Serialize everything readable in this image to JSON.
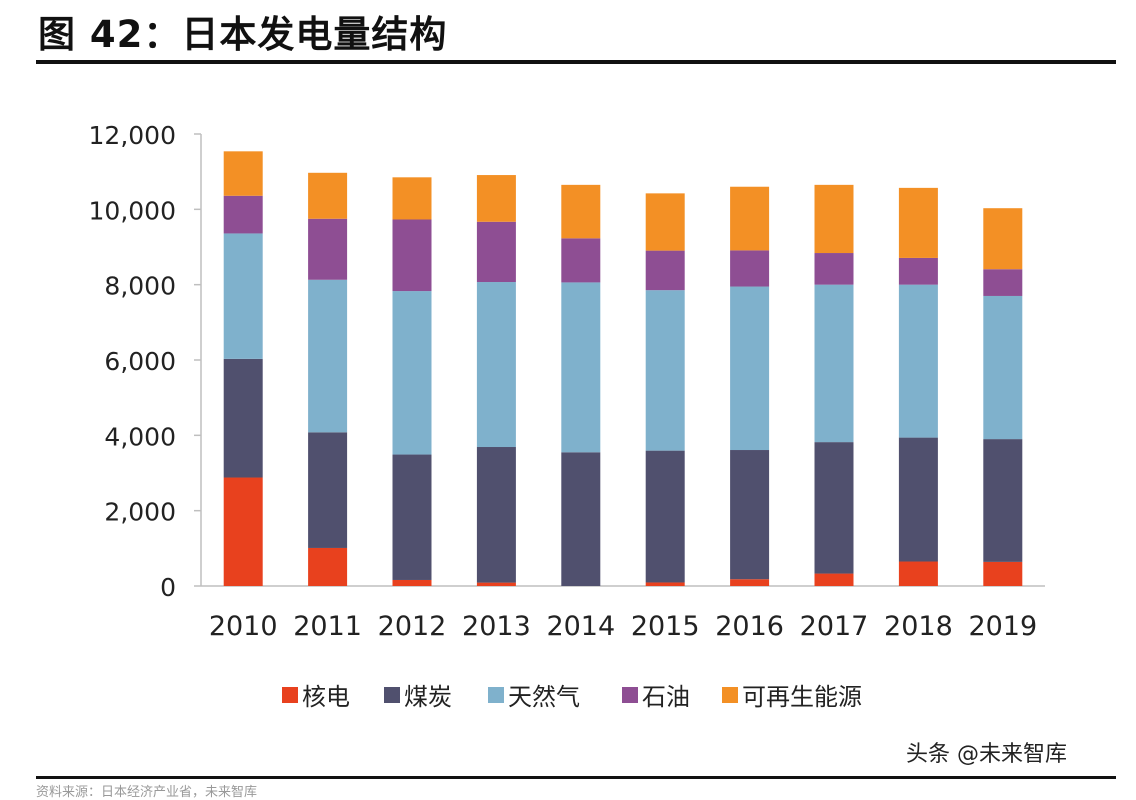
{
  "header": {
    "title": "图 42：日本发电量结构"
  },
  "chart_data": {
    "type": "bar",
    "stacked": true,
    "title": "",
    "xlabel": "",
    "ylabel": "",
    "ylim": [
      0,
      12000
    ],
    "yticks": [
      0,
      2000,
      4000,
      6000,
      8000,
      10000,
      12000
    ],
    "ytick_labels": [
      "0",
      "2,000",
      "4,000",
      "6,000",
      "8,000",
      "10,000",
      "12,000"
    ],
    "categories": [
      "2010",
      "2011",
      "2012",
      "2013",
      "2014",
      "2015",
      "2016",
      "2017",
      "2018",
      "2019"
    ],
    "grid": false,
    "legend_position": "bottom",
    "series": [
      {
        "name": "核电",
        "color": "#e8411e",
        "values": [
          2880,
          1010,
          160,
          90,
          0,
          94,
          180,
          330,
          650,
          640
        ]
      },
      {
        "name": "煤炭",
        "color": "#50506e",
        "values": [
          3150,
          3070,
          3330,
          3600,
          3550,
          3500,
          3430,
          3490,
          3290,
          3260
        ]
      },
      {
        "name": "天然气",
        "color": "#7fb1cc",
        "values": [
          3330,
          4050,
          4340,
          4380,
          4510,
          4260,
          4340,
          4180,
          4060,
          3800
        ]
      },
      {
        "name": "石油",
        "color": "#8e4e93",
        "values": [
          1000,
          1620,
          1900,
          1600,
          1170,
          1050,
          960,
          840,
          710,
          710
        ]
      },
      {
        "name": "可再生能源",
        "color": "#f39025",
        "values": [
          1180,
          1220,
          1120,
          1240,
          1420,
          1520,
          1690,
          1810,
          1860,
          1620
        ]
      }
    ]
  },
  "footer": {
    "watermark": "头条 @未来智库",
    "source": "资料来源：日本经济产业省，未来智库"
  }
}
